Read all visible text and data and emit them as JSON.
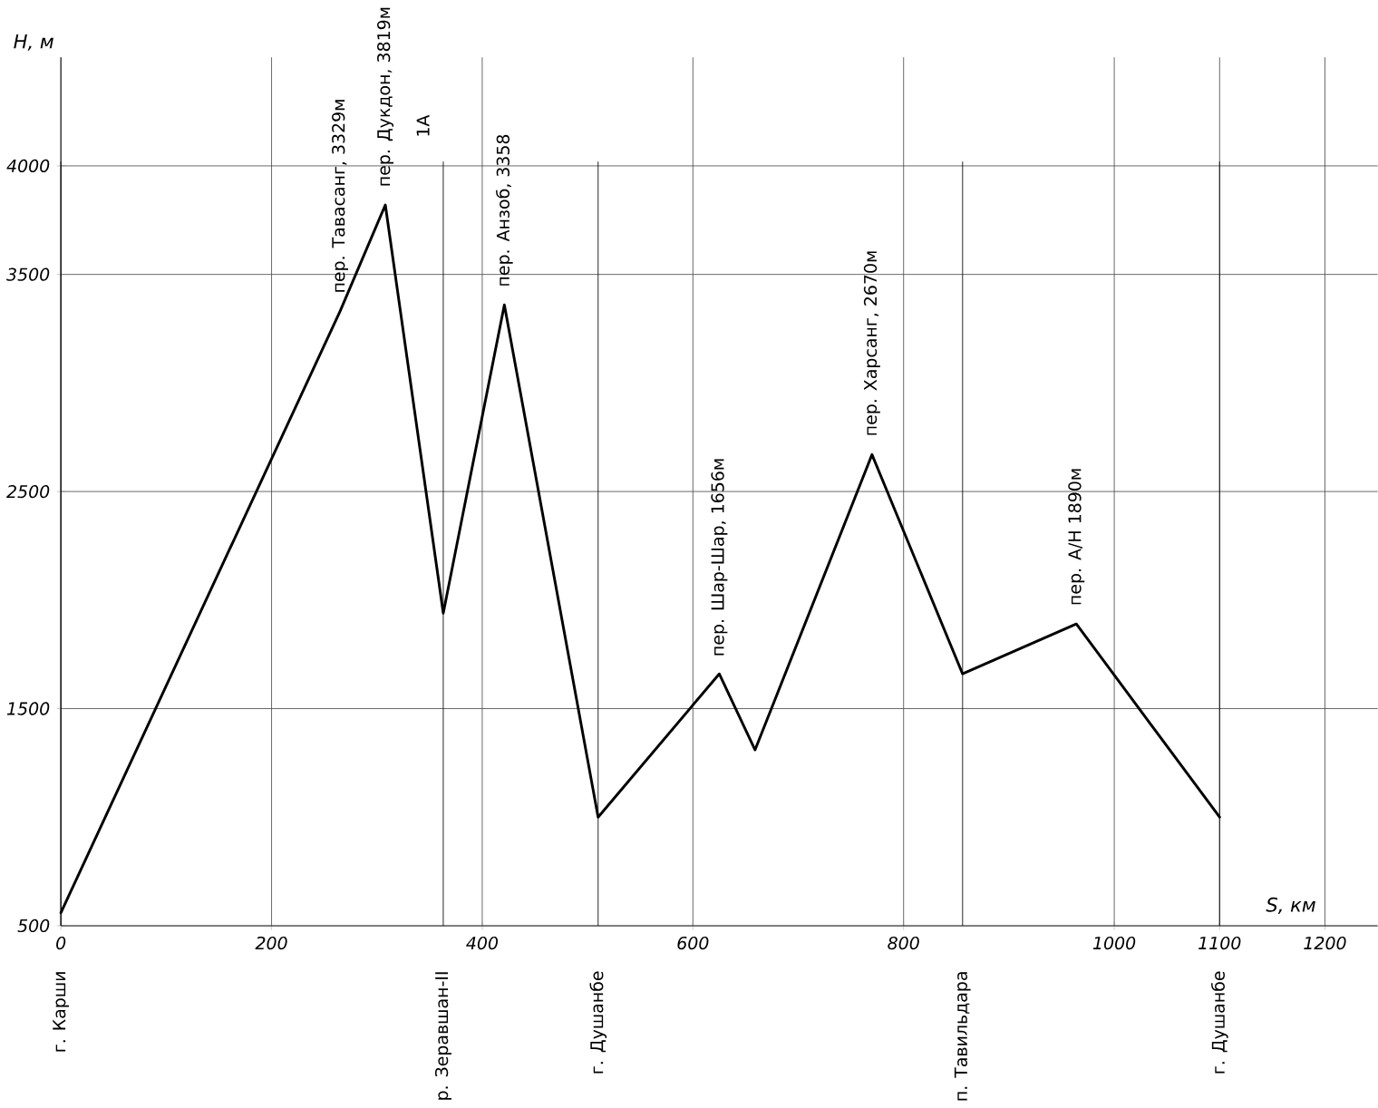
{
  "chart_data": {
    "type": "line",
    "xlabel": "S, км",
    "ylabel": "H, м",
    "x": [
      0,
      265,
      308,
      363,
      421,
      510,
      625,
      659,
      770,
      856,
      964,
      1100
    ],
    "series": [
      {
        "color": "#000000",
        "values": [
          560,
          3330,
          3820,
          1940,
          3360,
          1000,
          1660,
          1310,
          2670,
          1660,
          1890,
          1000
        ]
      }
    ],
    "xlim": [
      0,
      1250
    ],
    "ylim": [
      500,
      4500
    ],
    "xticks": [
      0,
      200,
      400,
      600,
      800,
      1000,
      1100,
      1200
    ],
    "yticks": [
      500,
      1500,
      2500,
      3500,
      4000
    ],
    "grid": true,
    "marker": "none",
    "line_style": "solid",
    "annotations": [
      {
        "text": "пер. Тавасанг, 3329м",
        "x": 265,
        "y": 3329
      },
      {
        "text": "пер. Дукдон, 3819м",
        "x": 308,
        "y": 3819
      },
      "1А",
      {
        "text": "пер. Анзоб, 3358",
        "x": 421,
        "y": 3358
      },
      {
        "text": "пер. Шар-Шар, 1656м",
        "x": 625,
        "y": 1656
      },
      {
        "text": "пер. Харсанг, 2670м",
        "x": 770,
        "y": 2670
      },
      {
        "text": "пер. А/Н 1890м",
        "x": 964,
        "y": 1890
      }
    ],
    "ref_lines": [
      {
        "axis": "x",
        "value": 0,
        "label": "г. Карши"
      },
      {
        "axis": "x",
        "value": 363,
        "label": "р. Зеравшан-II"
      },
      {
        "axis": "x",
        "value": 510,
        "label": "г. Душанбе"
      },
      {
        "axis": "x",
        "value": 856,
        "label": "п. Тавильдара"
      },
      {
        "axis": "x",
        "value": 1100,
        "label": "г. Душанбе"
      }
    ]
  }
}
